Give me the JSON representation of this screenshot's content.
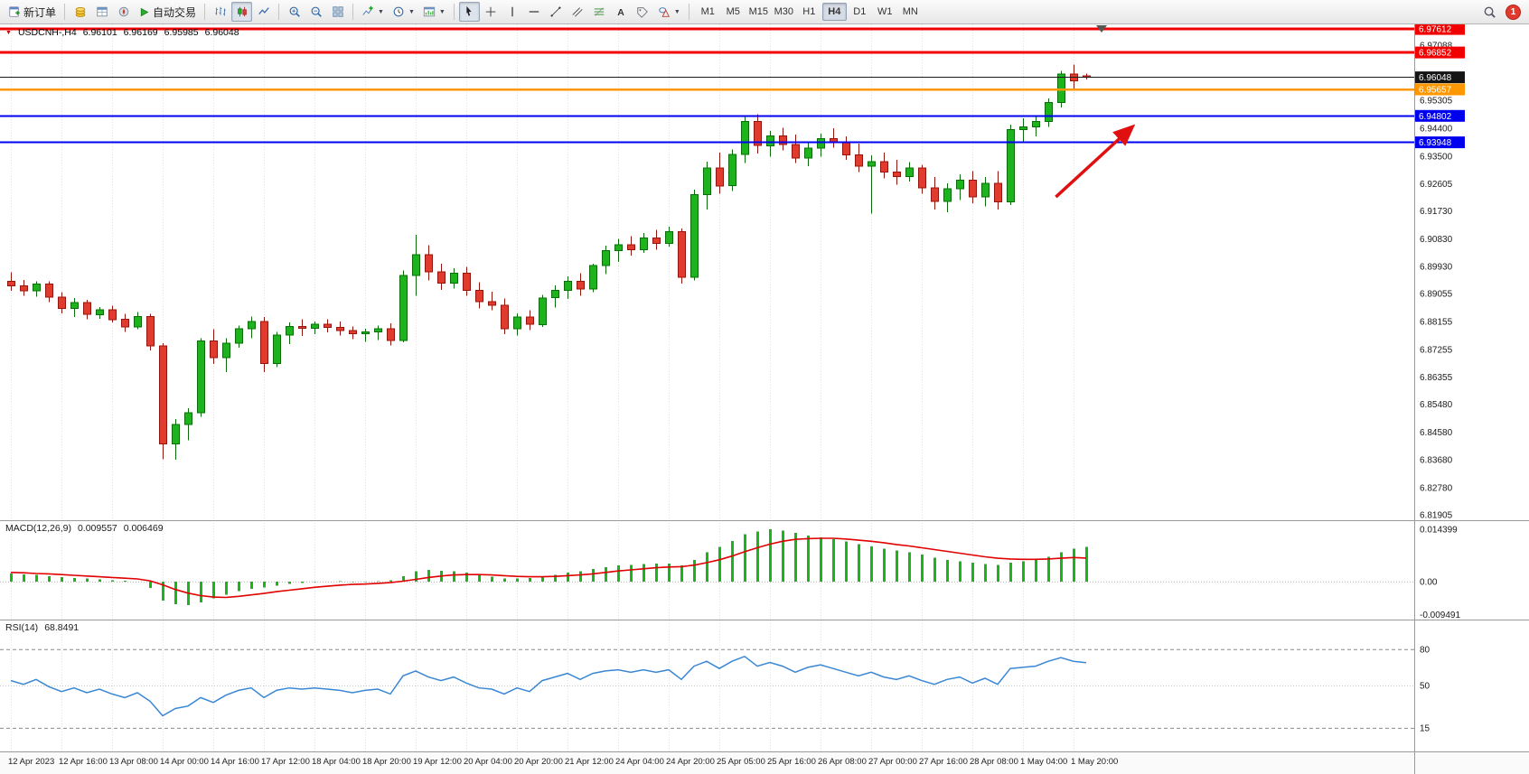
{
  "toolbar": {
    "new_order": "新订单",
    "autotrading": "自动交易",
    "timeframes": [
      "M1",
      "M5",
      "M15",
      "M30",
      "H1",
      "H4",
      "D1",
      "W1",
      "MN"
    ],
    "active_timeframe": "H4",
    "notification_count": "1"
  },
  "symbol_header": {
    "symbol_period": "USDCNH-,H4",
    "open": "6.96101",
    "high": "6.96169",
    "low": "6.95985",
    "close": "6.96048"
  },
  "price_axis": {
    "plain_labels": [
      "6.97088",
      "6.95305",
      "6.94400",
      "6.93500",
      "6.92605",
      "6.91730",
      "6.90830",
      "6.89930",
      "6.89055",
      "6.88155",
      "6.87255",
      "6.86355",
      "6.85480",
      "6.84580",
      "6.83680",
      "6.82780",
      "6.81905"
    ],
    "badges": [
      {
        "text": "6.97612",
        "price": 6.97612,
        "bg": "#f20000"
      },
      {
        "text": "6.96852",
        "price": 6.96852,
        "bg": "#f20000"
      },
      {
        "text": "6.96048",
        "price": 6.96048,
        "bg": "#151515"
      },
      {
        "text": "6.95657",
        "price": 6.95657,
        "bg": "#ff9800"
      },
      {
        "text": "6.94802",
        "price": 6.94802,
        "bg": "#0000f0"
      },
      {
        "text": "6.93948",
        "price": 6.93948,
        "bg": "#0000f0"
      }
    ]
  },
  "time_axis": {
    "labels": [
      "12 Apr 2023",
      "12 Apr 16:00",
      "13 Apr 08:00",
      "14 Apr 00:00",
      "14 Apr 16:00",
      "17 Apr 12:00",
      "18 Apr 04:00",
      "18 Apr 20:00",
      "19 Apr 12:00",
      "20 Apr 04:00",
      "20 Apr 20:00",
      "21 Apr 12:00",
      "24 Apr 04:00",
      "24 Apr 20:00",
      "25 Apr 05:00",
      "25 Apr 16:00",
      "26 Apr 08:00",
      "27 Apr 00:00",
      "27 Apr 16:00",
      "28 Apr 08:00",
      "1 May 04:00",
      "1 May 20:00"
    ]
  },
  "chart_data": [
    {
      "type": "candlestick",
      "symbol": "USDCNH-",
      "period": "H4",
      "ylim": [
        6.8173,
        6.9776
      ],
      "bull_color": "#1db31d",
      "bear_color": "#e23b2e",
      "bull_stroke": "#0a6d0a",
      "bear_stroke": "#93160e",
      "ohlc": [
        [
          6.8945,
          6.8975,
          6.8915,
          6.893
        ],
        [
          6.893,
          6.895,
          6.8898,
          6.8914
        ],
        [
          6.8914,
          6.8945,
          6.8895,
          6.8936
        ],
        [
          6.8936,
          6.8946,
          6.8878,
          6.8894
        ],
        [
          6.8894,
          6.891,
          6.8842,
          6.8858
        ],
        [
          6.8858,
          6.8892,
          6.883,
          6.8876
        ],
        [
          6.8876,
          6.8885,
          6.8822,
          6.8838
        ],
        [
          6.8838,
          6.8862,
          6.8824,
          6.8854
        ],
        [
          6.8854,
          6.8866,
          6.8812,
          6.8822
        ],
        [
          6.8822,
          6.884,
          6.8782,
          6.8798
        ],
        [
          6.8798,
          6.8846,
          6.879,
          6.8832
        ],
        [
          6.8832,
          6.884,
          6.8722,
          6.8736
        ],
        [
          6.8736,
          6.8745,
          6.837,
          6.842
        ],
        [
          6.842,
          6.85,
          6.8368,
          6.8482
        ],
        [
          6.8482,
          6.8535,
          6.8432,
          6.852
        ],
        [
          6.852,
          6.8762,
          6.8508,
          6.8752
        ],
        [
          6.8752,
          6.879,
          6.8678,
          6.8698
        ],
        [
          6.8698,
          6.8762,
          6.8652,
          6.8746
        ],
        [
          6.8746,
          6.8802,
          6.873,
          6.8792
        ],
        [
          6.8792,
          6.8832,
          6.8762,
          6.8816
        ],
        [
          6.8816,
          6.883,
          6.8652,
          6.868
        ],
        [
          6.868,
          6.8782,
          6.8668,
          6.8772
        ],
        [
          6.8772,
          6.8812,
          6.8742,
          6.88
        ],
        [
          6.88,
          6.8822,
          6.8768,
          6.8794
        ],
        [
          6.8794,
          6.8816,
          6.8774,
          6.8806
        ],
        [
          6.8806,
          6.8822,
          6.878,
          6.8796
        ],
        [
          6.8796,
          6.8816,
          6.877,
          6.8786
        ],
        [
          6.8786,
          6.88,
          6.8758,
          6.8776
        ],
        [
          6.8776,
          6.8792,
          6.875,
          6.8782
        ],
        [
          6.8782,
          6.8802,
          6.8756,
          6.8792
        ],
        [
          6.8792,
          6.881,
          6.8738,
          6.8754
        ],
        [
          6.8754,
          6.898,
          6.8748,
          6.8964
        ],
        [
          6.8964,
          6.9095,
          6.8898,
          6.9032
        ],
        [
          6.9032,
          6.9062,
          6.8948,
          6.8976
        ],
        [
          6.8976,
          6.9002,
          6.8918,
          6.894
        ],
        [
          6.894,
          6.8988,
          6.8922,
          6.8972
        ],
        [
          6.8972,
          6.8992,
          6.8898,
          6.8916
        ],
        [
          6.8916,
          6.8942,
          6.8858,
          6.888
        ],
        [
          6.888,
          6.8912,
          6.8852,
          6.8868
        ],
        [
          6.8868,
          6.889,
          6.8774,
          6.8792
        ],
        [
          6.8792,
          6.8842,
          6.877,
          6.883
        ],
        [
          6.883,
          6.8852,
          6.8788,
          6.8806
        ],
        [
          6.8806,
          6.8902,
          6.8798,
          6.8892
        ],
        [
          6.8892,
          6.8932,
          6.886,
          6.8916
        ],
        [
          6.8916,
          6.8962,
          6.8888,
          6.8946
        ],
        [
          6.8946,
          6.8972,
          6.8898,
          6.892
        ],
        [
          6.892,
          6.9002,
          6.891,
          6.8996
        ],
        [
          6.8996,
          6.906,
          6.8968,
          6.9044
        ],
        [
          6.9044,
          6.9082,
          6.9008,
          6.9064
        ],
        [
          6.9064,
          6.9092,
          6.9028,
          6.9048
        ],
        [
          6.9048,
          6.9102,
          6.9038,
          6.9086
        ],
        [
          6.9086,
          6.9112,
          6.9048,
          6.9068
        ],
        [
          6.9068,
          6.9122,
          6.9058,
          6.9106
        ],
        [
          6.9106,
          6.9116,
          6.8938,
          6.8958
        ],
        [
          6.8958,
          6.9242,
          6.8948,
          6.9226
        ],
        [
          6.9226,
          6.9332,
          6.9178,
          6.9312
        ],
        [
          6.9312,
          6.9362,
          6.9228,
          6.9254
        ],
        [
          6.9254,
          6.9372,
          6.9238,
          6.9356
        ],
        [
          6.9356,
          6.948,
          6.9328,
          6.9462
        ],
        [
          6.9462,
          6.9485,
          6.9358,
          6.9384
        ],
        [
          6.9384,
          6.9432,
          6.9348,
          6.9416
        ],
        [
          6.9416,
          6.9442,
          6.9368,
          6.9388
        ],
        [
          6.9388,
          6.942,
          6.9328,
          6.9344
        ],
        [
          6.9344,
          6.9392,
          6.9318,
          6.9376
        ],
        [
          6.9376,
          6.9422,
          6.9348,
          6.9406
        ],
        [
          6.9406,
          6.944,
          6.9378,
          6.9394
        ],
        [
          6.9394,
          6.9414,
          6.9338,
          6.9354
        ],
        [
          6.9354,
          6.939,
          6.9298,
          6.9318
        ],
        [
          6.9318,
          6.9352,
          6.9165,
          6.9332
        ],
        [
          6.9332,
          6.9362,
          6.9278,
          6.9298
        ],
        [
          6.9298,
          6.9338,
          6.9258,
          6.9284
        ],
        [
          6.9284,
          6.933,
          6.9268,
          6.9312
        ],
        [
          6.9312,
          6.9322,
          6.9228,
          6.9248
        ],
        [
          6.9248,
          6.9282,
          6.9178,
          6.9204
        ],
        [
          6.9204,
          6.9262,
          6.9168,
          6.9244
        ],
        [
          6.9244,
          6.9292,
          6.9208,
          6.9272
        ],
        [
          6.9272,
          6.9302,
          6.9198,
          6.9218
        ],
        [
          6.9218,
          6.9282,
          6.9188,
          6.9262
        ],
        [
          6.9262,
          6.9302,
          6.9178,
          6.9202
        ],
        [
          6.9202,
          6.9452,
          6.9192,
          6.9436
        ],
        [
          6.9436,
          6.9472,
          6.9398,
          6.9444
        ],
        [
          6.9444,
          6.9476,
          6.9414,
          6.9462
        ],
        [
          6.9462,
          6.9536,
          6.9444,
          6.9524
        ],
        [
          6.9524,
          6.9626,
          6.9508,
          6.9616
        ],
        [
          6.9616,
          6.9646,
          6.9562,
          6.9594
        ],
        [
          6.96101,
          6.96169,
          6.95985,
          6.96048
        ]
      ],
      "price_lines": [
        {
          "price": 6.97612,
          "color": "#f20000",
          "width": 3
        },
        {
          "price": 6.96852,
          "color": "#f20000",
          "width": 3
        },
        {
          "price": 6.96048,
          "color": "#1a1a1a",
          "width": 1.2
        },
        {
          "price": 6.95657,
          "color": "#ff9800",
          "width": 2.5
        },
        {
          "price": 6.94802,
          "color": "#0000f0",
          "width": 2
        },
        {
          "price": 6.93948,
          "color": "#0000f0",
          "width": 2
        }
      ],
      "annotations": [
        {
          "type": "arrow",
          "from_bar": 82.6,
          "from_price": 6.9218,
          "to_bar": 88.6,
          "to_price": 6.9443,
          "color": "#e01010"
        }
      ]
    },
    {
      "type": "bar",
      "name": "MACD(12,26,9)",
      "value": "0.009557",
      "signal_value": "0.006469",
      "ylim": [
        -0.009491,
        0.014399
      ],
      "axis_labels": [
        "0.014399",
        "0.00",
        "-0.009491"
      ],
      "histogram_color": "#1db31d",
      "signal_color": "#e00000",
      "histogram": [
        0.0022,
        0.002,
        0.0018,
        0.0015,
        0.0012,
        0.001,
        0.0008,
        0.0006,
        0.0004,
        0.0002,
        0.0,
        -0.0018,
        -0.0052,
        -0.0062,
        -0.0065,
        -0.0058,
        -0.0046,
        -0.0036,
        -0.0027,
        -0.002,
        -0.0016,
        -0.0011,
        -0.0007,
        -0.0004,
        -0.0002,
        0.0,
        0.0001,
        -0.0002,
        -0.0001,
        0.0001,
        0.0003,
        0.0015,
        0.0028,
        0.0032,
        0.003,
        0.0028,
        0.0024,
        0.0018,
        0.0013,
        0.0008,
        0.0008,
        0.0009,
        0.0012,
        0.0018,
        0.0024,
        0.0028,
        0.0034,
        0.004,
        0.0044,
        0.0046,
        0.0048,
        0.0049,
        0.005,
        0.0044,
        0.006,
        0.008,
        0.0095,
        0.0112,
        0.013,
        0.0138,
        0.0144,
        0.014,
        0.0134,
        0.0126,
        0.0121,
        0.0117,
        0.0111,
        0.0103,
        0.0097,
        0.0091,
        0.0085,
        0.008,
        0.0074,
        0.0066,
        0.006,
        0.0056,
        0.0052,
        0.0048,
        0.0046,
        0.0052,
        0.0056,
        0.006,
        0.0068,
        0.008,
        0.009,
        0.009557
      ],
      "signal": [
        0.0025,
        0.0024,
        0.0022,
        0.0021,
        0.0019,
        0.0017,
        0.0015,
        0.0013,
        0.0011,
        0.0009,
        0.0007,
        0.0002,
        -0.0009,
        -0.0022,
        -0.0032,
        -0.0039,
        -0.0043,
        -0.0044,
        -0.0041,
        -0.0037,
        -0.0033,
        -0.0028,
        -0.0024,
        -0.002,
        -0.0016,
        -0.0013,
        -0.001,
        -0.0008,
        -0.0007,
        -0.0005,
        -0.0003,
        0.0001,
        0.0006,
        0.0011,
        0.0015,
        0.0018,
        0.0019,
        0.0019,
        0.0018,
        0.0016,
        0.0014,
        0.0013,
        0.0013,
        0.0014,
        0.0016,
        0.0018,
        0.0021,
        0.0025,
        0.0029,
        0.0032,
        0.0035,
        0.0038,
        0.004,
        0.0041,
        0.0045,
        0.0052,
        0.006,
        0.007,
        0.0082,
        0.0093,
        0.0103,
        0.0111,
        0.0116,
        0.0118,
        0.0119,
        0.0119,
        0.0117,
        0.0114,
        0.0111,
        0.0107,
        0.0102,
        0.0098,
        0.0093,
        0.0088,
        0.0083,
        0.0078,
        0.0073,
        0.0068,
        0.0064,
        0.0062,
        0.0061,
        0.0061,
        0.0062,
        0.0064,
        0.0066,
        0.006469
      ]
    },
    {
      "type": "line",
      "name": "RSI(14)",
      "value": "68.8491",
      "ylim": [
        0,
        100
      ],
      "levels": [
        80,
        50,
        15
      ],
      "line_color": "#3a87d4",
      "values": [
        54,
        51,
        55,
        49,
        45,
        48,
        44,
        47,
        43,
        40,
        44,
        37,
        25,
        31,
        33,
        40,
        36,
        42,
        46,
        48,
        40,
        46,
        48,
        47,
        48,
        47,
        46,
        44,
        46,
        47,
        43,
        58,
        62,
        57,
        54,
        57,
        52,
        48,
        47,
        43,
        48,
        45,
        54,
        57,
        60,
        55,
        60,
        62,
        63,
        61,
        63,
        61,
        63,
        55,
        66,
        70,
        64,
        70,
        74,
        66,
        69,
        66,
        61,
        65,
        67,
        64,
        61,
        58,
        61,
        57,
        55,
        58,
        54,
        51,
        55,
        57,
        52,
        56,
        51,
        64,
        65,
        66,
        70,
        73,
        70,
        68.8491
      ]
    }
  ]
}
